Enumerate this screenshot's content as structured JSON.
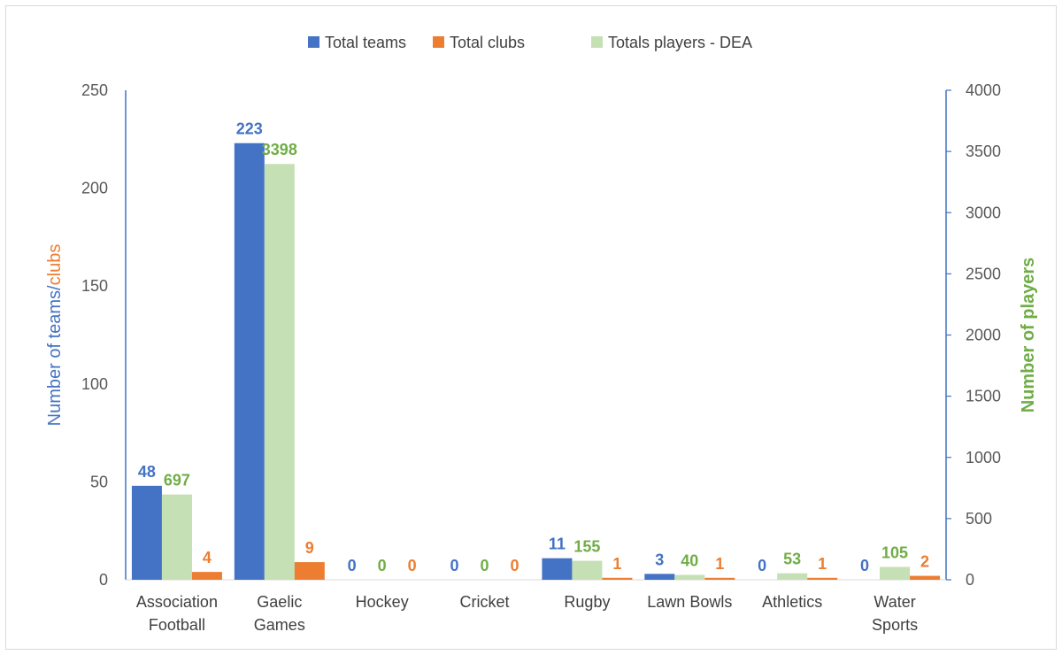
{
  "chart_data": {
    "type": "bar",
    "categories": [
      [
        "Association",
        "Football"
      ],
      [
        "Gaelic",
        "Games"
      ],
      [
        "Hockey"
      ],
      [
        "Cricket"
      ],
      [
        "Rugby"
      ],
      [
        "Lawn Bowls"
      ],
      [
        "Athletics"
      ],
      [
        "Water",
        "Sports"
      ]
    ],
    "series": [
      {
        "name": "Total teams",
        "axis": "left",
        "color": "#4472C4",
        "label_color": "#4472C4",
        "values": [
          48,
          223,
          0,
          0,
          11,
          3,
          0,
          0
        ]
      },
      {
        "name": "Totals players - DEA",
        "axis": "right",
        "color": "#C5E0B4",
        "label_color": "#70AD47",
        "values": [
          697,
          3398,
          0,
          0,
          155,
          40,
          53,
          105
        ]
      },
      {
        "name": "Total clubs",
        "axis": "left",
        "color": "#ED7D31",
        "label_color": "#ED7D31",
        "values": [
          4,
          9,
          0,
          0,
          1,
          1,
          1,
          2
        ]
      }
    ],
    "legend": {
      "position": "top",
      "order": [
        "Total teams",
        "Total clubs",
        "Totals players - DEA"
      ]
    },
    "y_left": {
      "title_parts": [
        {
          "text": "Number of teams/",
          "color": "#4472C4"
        },
        {
          "text": "clubs",
          "color": "#ED7D31"
        }
      ],
      "ylim": [
        0,
        250
      ],
      "ticks": [
        0,
        50,
        100,
        150,
        200,
        250
      ],
      "axis_color": "#4472C4"
    },
    "y_right": {
      "title": "Number of players",
      "title_color": "#70AD47",
      "ylim": [
        0,
        4000
      ],
      "ticks": [
        0,
        500,
        1000,
        1500,
        2000,
        2500,
        3000,
        3500,
        4000
      ],
      "axis_color": "#4472C4"
    },
    "grid": false
  }
}
